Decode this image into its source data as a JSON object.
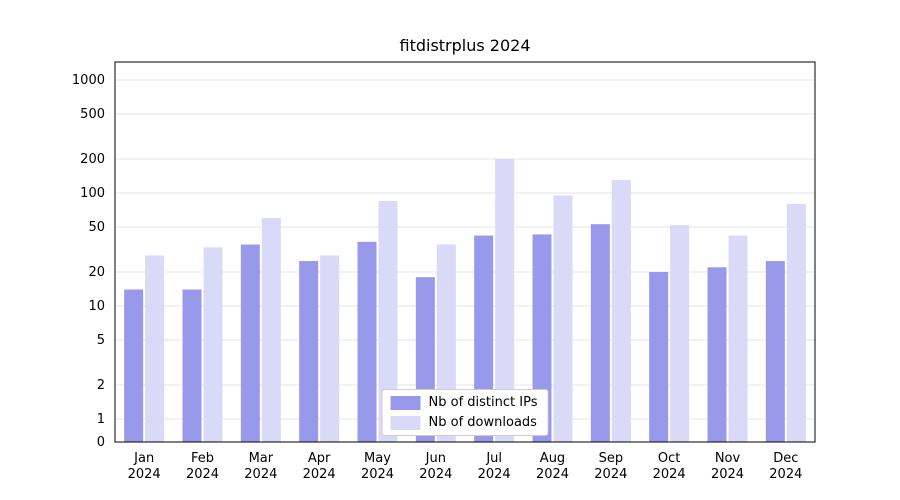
{
  "title": "fitdistrplus 2024",
  "chart_data": {
    "type": "bar",
    "title": "fitdistrplus 2024",
    "scale": "log",
    "grid": true,
    "legend_position": "bottom-center-inside",
    "categories": [
      "Jan",
      "Feb",
      "Mar",
      "Apr",
      "May",
      "Jun",
      "Jul",
      "Aug",
      "Sep",
      "Oct",
      "Nov",
      "Dec"
    ],
    "x_sub_label": "2024",
    "y_ticks": [
      0,
      1,
      2,
      5,
      10,
      20,
      50,
      100,
      200,
      500,
      1000
    ],
    "ylim": [
      0,
      1000
    ],
    "xlabel": "",
    "ylabel": "",
    "series": [
      {
        "name": "Nb of distinct IPs",
        "color": "#9999ec",
        "values": [
          14,
          14,
          35,
          25,
          37,
          18,
          42,
          43,
          53,
          20,
          22,
          25
        ]
      },
      {
        "name": "Nb of downloads",
        "color": "#d9d9f8",
        "values": [
          28,
          33,
          60,
          28,
          85,
          35,
          200,
          95,
          130,
          52,
          42,
          80
        ]
      }
    ]
  },
  "colors": {
    "gridline": "#e6e6e6",
    "plot_border": "#000000",
    "text": "#000000"
  }
}
